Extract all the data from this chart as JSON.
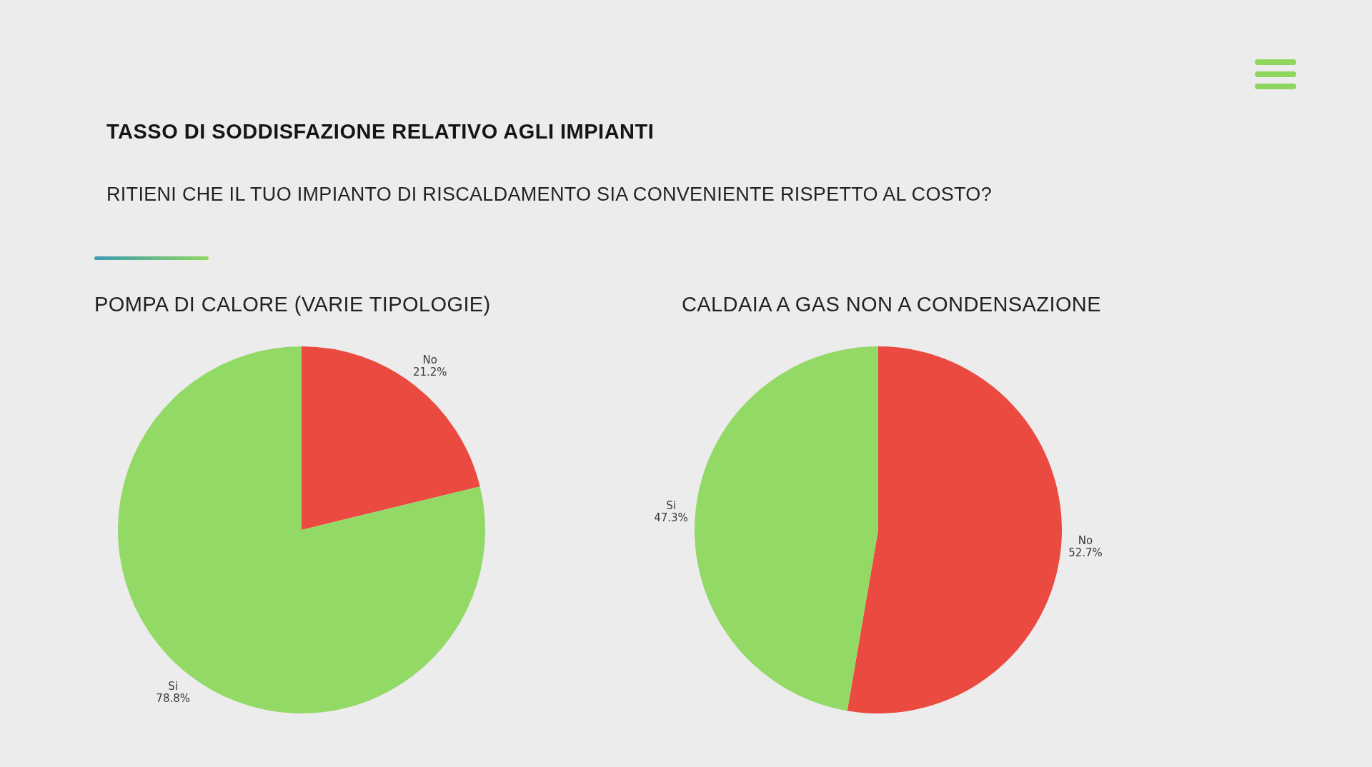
{
  "chart_data": [
    {
      "type": "other",
      "title": "TASSO DI SODDISFAZIONE RELATIVO AGLI IMPIANTI",
      "subtitle": "RITIENI CHE IL TUO IMPIANTO DI RISCALDAMENTO SIA CONVENIENTE RISPETTO AL COSTO?"
    },
    {
      "type": "pie",
      "title": "POMPA DI CALORE (VARIE TIPOLOGIE)",
      "categories": [
        "No",
        "Si"
      ],
      "values": [
        21.2,
        78.8
      ],
      "colors": [
        "#ea4a3f",
        "#93d966"
      ],
      "value_labels": [
        "21.2%",
        "78.8%"
      ]
    },
    {
      "type": "pie",
      "title": "CALDAIA A GAS NON A CONDENSAZIONE",
      "categories": [
        "No",
        "Si"
      ],
      "values": [
        52.7,
        47.3
      ],
      "colors": [
        "#ea4a3f",
        "#93d966"
      ],
      "value_labels": [
        "52.7%",
        "47.3%"
      ]
    }
  ]
}
